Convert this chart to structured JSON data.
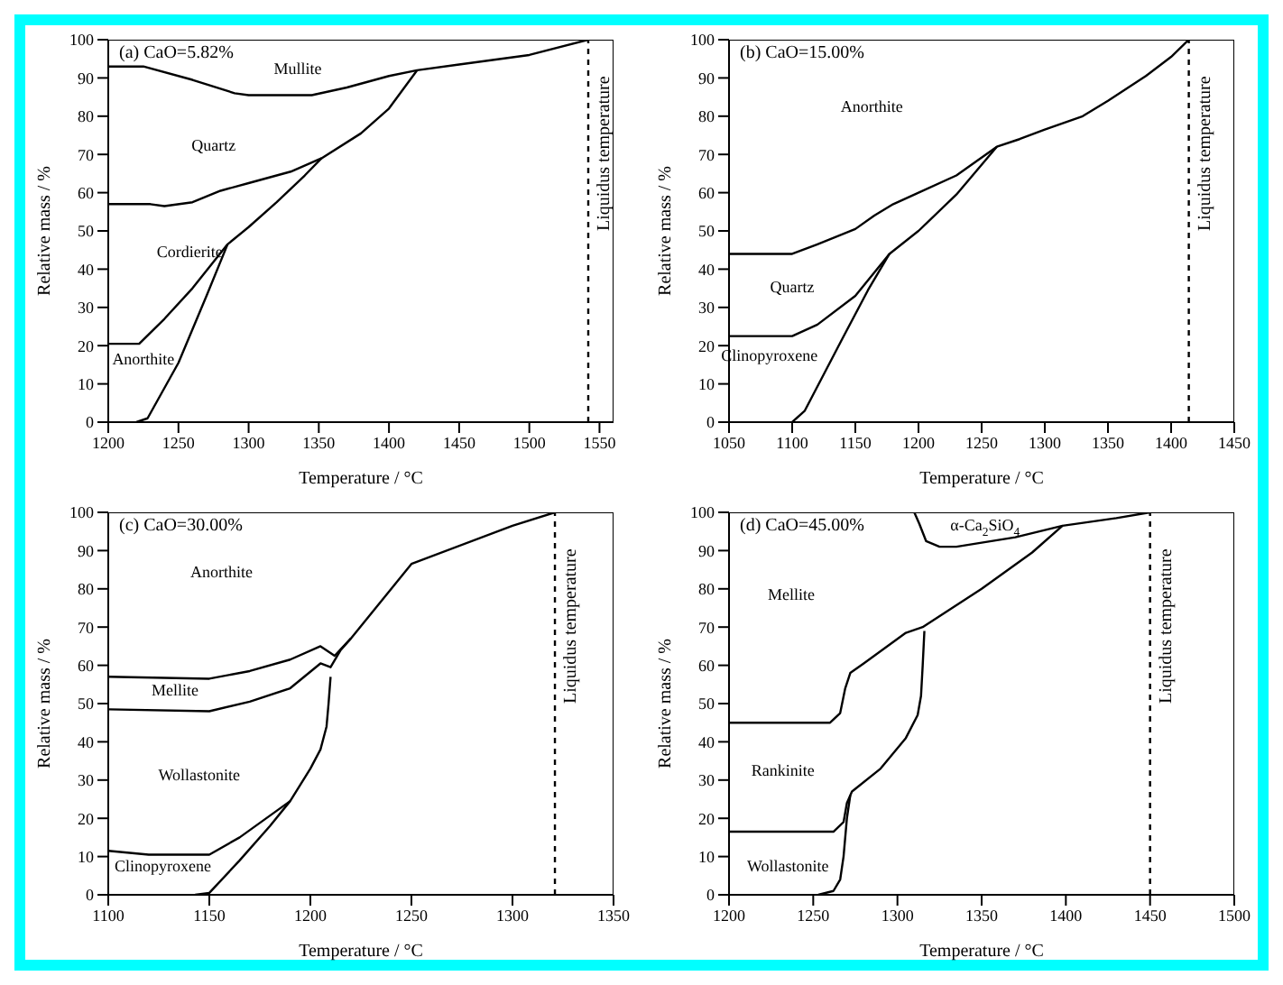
{
  "chart_data": [
    {
      "type": "line",
      "title": "(a) CaO=5.82%",
      "xlabel": "Temperature / °C",
      "ylabel": "Relative mass / %",
      "xlim": [
        1200,
        1560
      ],
      "xticks": [
        1200,
        1250,
        1300,
        1350,
        1400,
        1450,
        1500,
        1550
      ],
      "ylim": [
        0,
        100
      ],
      "yticks": [
        0,
        10,
        20,
        30,
        40,
        50,
        60,
        70,
        80,
        90,
        100
      ],
      "marker": "none",
      "series": [
        {
          "color": "#000000",
          "x": [
            1200,
            1225,
            1260,
            1290,
            1300,
            1345,
            1370,
            1400,
            1420,
            1450,
            1500,
            1542
          ],
          "values": [
            93,
            93,
            89.5,
            86,
            85.5,
            85.5,
            87.5,
            90.5,
            92,
            93.5,
            96,
            100
          ]
        },
        {
          "color": "#000000",
          "x": [
            1200,
            1230,
            1240,
            1260,
            1280,
            1300,
            1330,
            1352,
            1380,
            1400,
            1420
          ],
          "values": [
            57,
            57,
            56.5,
            57.5,
            60.5,
            62.5,
            65.5,
            69,
            75.5,
            82,
            92
          ]
        },
        {
          "color": "#000000",
          "x": [
            1200,
            1222,
            1240,
            1260,
            1285,
            1300,
            1320,
            1340,
            1352
          ],
          "values": [
            20.5,
            20.5,
            27,
            35,
            46.5,
            51,
            57.5,
            64.5,
            69
          ]
        },
        {
          "color": "#000000",
          "x": [
            1220,
            1228,
            1250,
            1270,
            1285
          ],
          "values": [
            0,
            1,
            15.5,
            33,
            46.5
          ]
        }
      ],
      "ref_lines": [
        {
          "axis": "x",
          "value": 1542,
          "label": "Liquidus temperature",
          "color": "#000000",
          "line_style": "dashed"
        }
      ],
      "annotations": [
        "Mullite",
        "Quartz",
        "Cordierite",
        "Anorthite"
      ]
    },
    {
      "type": "line",
      "title": "(b) CaO=15.00%",
      "xlabel": "Temperature / °C",
      "ylabel": "Relative mass / %",
      "xlim": [
        1050,
        1450
      ],
      "xticks": [
        1050,
        1100,
        1150,
        1200,
        1250,
        1300,
        1350,
        1400,
        1450
      ],
      "ylim": [
        0,
        100
      ],
      "yticks": [
        0,
        10,
        20,
        30,
        40,
        50,
        60,
        70,
        80,
        90,
        100
      ],
      "marker": "none",
      "series": [
        {
          "color": "#000000",
          "x": [
            1050,
            1100,
            1120,
            1150,
            1165,
            1180,
            1200,
            1230,
            1262,
            1280,
            1300,
            1330,
            1350,
            1380,
            1400,
            1414
          ],
          "values": [
            44,
            44,
            46.5,
            50.5,
            54,
            57,
            60,
            64.5,
            72,
            74,
            76.5,
            80,
            84,
            90.5,
            95.5,
            100
          ]
        },
        {
          "color": "#000000",
          "x": [
            1050,
            1100,
            1120,
            1150,
            1177,
            1200,
            1230,
            1262
          ],
          "values": [
            22.5,
            22.5,
            25.5,
            33,
            44,
            50,
            59.5,
            72
          ]
        },
        {
          "color": "#000000",
          "x": [
            1100,
            1110,
            1140,
            1160,
            1177
          ],
          "values": [
            0,
            3,
            22,
            34.5,
            44
          ]
        }
      ],
      "ref_lines": [
        {
          "axis": "x",
          "value": 1414,
          "label": "Liquidus temperature",
          "color": "#000000",
          "line_style": "dashed"
        }
      ],
      "annotations": [
        "Anorthite",
        "Quartz",
        "Clinopyroxene"
      ]
    },
    {
      "type": "line",
      "title": "(c) CaO=30.00%",
      "xlabel": "Temperature / °C",
      "ylabel": "Relative mass / %",
      "xlim": [
        1100,
        1350
      ],
      "xticks": [
        1100,
        1150,
        1200,
        1250,
        1300,
        1350
      ],
      "ylim": [
        0,
        100
      ],
      "yticks": [
        0,
        10,
        20,
        30,
        40,
        50,
        60,
        70,
        80,
        90,
        100
      ],
      "marker": "none",
      "series": [
        {
          "color": "#000000",
          "x": [
            1100,
            1150,
            1170,
            1190,
            1205,
            1212,
            1220,
            1250,
            1300,
            1321
          ],
          "values": [
            57,
            56.5,
            58.5,
            61.5,
            65,
            62.5,
            67,
            86.5,
            96.5,
            100
          ]
        },
        {
          "color": "#000000",
          "x": [
            1100,
            1150,
            1170,
            1190,
            1205,
            1210,
            1215,
            1220
          ],
          "values": [
            48.5,
            48,
            50.5,
            54,
            60.5,
            59.5,
            64,
            67
          ]
        },
        {
          "color": "#000000",
          "x": [
            1100,
            1120,
            1150,
            1165,
            1190,
            1200,
            1205,
            1208,
            1209,
            1210
          ],
          "values": [
            11.5,
            10.5,
            10.5,
            15,
            24.5,
            33,
            38,
            44,
            50,
            57
          ]
        },
        {
          "color": "#000000",
          "x": [
            1143,
            1150,
            1165,
            1180,
            1190
          ],
          "values": [
            0,
            0.5,
            9,
            18,
            24.5
          ]
        }
      ],
      "ref_lines": [
        {
          "axis": "x",
          "value": 1321,
          "label": "Liquidus temperature",
          "color": "#000000",
          "line_style": "dashed"
        }
      ],
      "annotations": [
        "Anorthite",
        "Mellite",
        "Wollastonite",
        "Clinopyroxene"
      ]
    },
    {
      "type": "line",
      "title": "(d) CaO=45.00%",
      "xlabel": "Temperature / °C",
      "ylabel": "Relative mass / %",
      "xlim": [
        1200,
        1500
      ],
      "xticks": [
        1200,
        1250,
        1300,
        1350,
        1400,
        1450,
        1500
      ],
      "ylim": [
        0,
        100
      ],
      "yticks": [
        0,
        10,
        20,
        30,
        40,
        50,
        60,
        70,
        80,
        90,
        100
      ],
      "marker": "none",
      "series": [
        {
          "color": "#000000",
          "x": [
            1310,
            1313,
            1317,
            1325,
            1335,
            1370,
            1398
          ],
          "values": [
            100,
            97,
            92.5,
            91,
            91,
            93.5,
            96.5
          ]
        },
        {
          "color": "#000000",
          "x": [
            1200,
            1260,
            1266,
            1269,
            1272,
            1280,
            1305,
            1315,
            1350,
            1380,
            1398,
            1430,
            1450
          ],
          "values": [
            45,
            45,
            47.5,
            54,
            58,
            60.5,
            68.5,
            70,
            80,
            89.5,
            96.5,
            98.5,
            100
          ]
        },
        {
          "color": "#000000",
          "x": [
            1200,
            1262,
            1268,
            1270,
            1273,
            1290,
            1305,
            1312,
            1314,
            1315,
            1316
          ],
          "values": [
            16.5,
            16.5,
            19,
            24,
            27,
            33,
            41,
            47,
            52,
            60,
            69
          ]
        },
        {
          "color": "#000000",
          "x": [
            1253,
            1262,
            1266,
            1268,
            1270,
            1272
          ],
          "values": [
            0,
            1,
            4,
            10,
            20,
            26
          ]
        }
      ],
      "ref_lines": [
        {
          "axis": "x",
          "value": 1450,
          "label": "Liquidus temperature",
          "color": "#000000",
          "line_style": "dashed"
        }
      ],
      "annotations": [
        "α-Ca$_{2}$SiO$_{4}$",
        "Mellite",
        "Rankinite",
        "Wollastonite"
      ]
    }
  ]
}
